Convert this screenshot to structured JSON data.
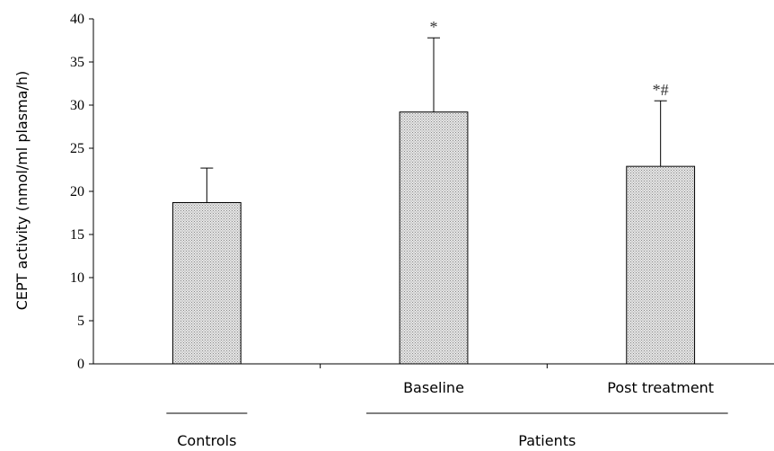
{
  "chart_data": {
    "type": "bar",
    "categories": [
      "",
      "Baseline",
      "Post treatment"
    ],
    "values": [
      18.7,
      29.2,
      22.9
    ],
    "error_upper": [
      22.7,
      37.8,
      30.5
    ],
    "annotations": [
      "",
      "*",
      "*#"
    ],
    "groups": [
      {
        "label": "Controls",
        "categories": [
          0
        ]
      },
      {
        "label": "Patients",
        "categories": [
          1,
          2
        ]
      }
    ],
    "title": "",
    "xlabel": "",
    "ylabel": "CEPT activity (nmol/ml plasma/h)",
    "ylim": [
      0,
      40
    ],
    "yticks": [
      0,
      5,
      10,
      15,
      20,
      25,
      30,
      35,
      40
    ],
    "grid": false,
    "bar_fill": "#d9d9d9",
    "bar_edge": "#000000"
  }
}
